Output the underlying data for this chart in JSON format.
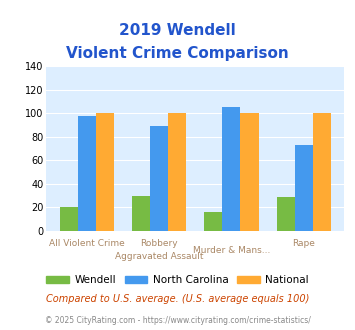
{
  "title_line1": "2019 Wendell",
  "title_line2": "Violent Crime Comparison",
  "top_labels": [
    "",
    "Robbery",
    "Murder & Mans...",
    ""
  ],
  "bot_labels": [
    "All Violent Crime",
    "Aggravated Assault",
    "",
    "Rape"
  ],
  "wendell": [
    20,
    30,
    16,
    29
  ],
  "north_carolina": [
    98,
    89,
    105,
    73
  ],
  "national": [
    100,
    100,
    100,
    100
  ],
  "color_wendell": "#77bb44",
  "color_nc": "#4499ee",
  "color_national": "#ffaa33",
  "ylim": [
    0,
    140
  ],
  "yticks": [
    0,
    20,
    40,
    60,
    80,
    100,
    120,
    140
  ],
  "plot_bg": "#ddeeff",
  "title_color": "#2255cc",
  "footer_text": "Compared to U.S. average. (U.S. average equals 100)",
  "footer_color": "#cc4400",
  "credit_text": "© 2025 CityRating.com - https://www.cityrating.com/crime-statistics/",
  "credit_color": "#888888",
  "legend_labels": [
    "Wendell",
    "North Carolina",
    "National"
  ],
  "tick_label_color": "#aa8866"
}
